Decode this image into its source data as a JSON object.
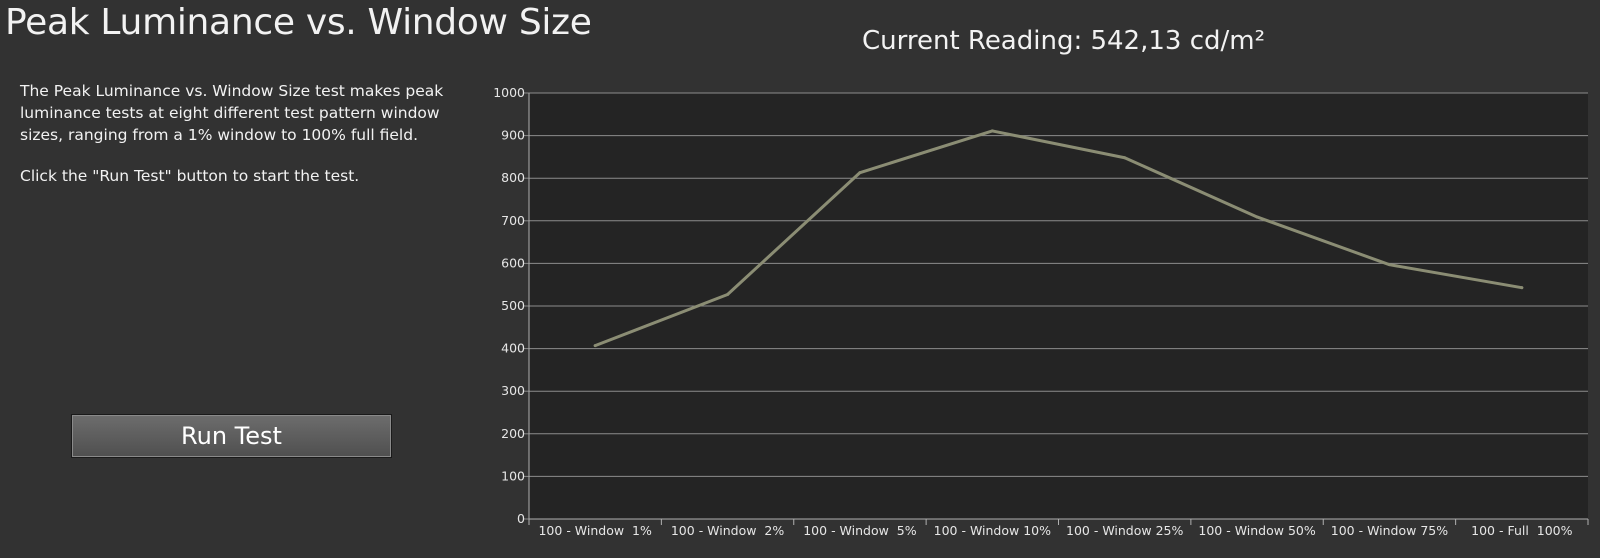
{
  "title": "Peak Luminance vs. Window Size",
  "reading": "Current Reading: 542,13 cd/m²",
  "description": "The Peak Luminance vs. Window Size test makes peak luminance tests at eight different test pattern window sizes, ranging from a 1% window to 100% full field.",
  "hint": "Click the \"Run Test\" button to start the test.",
  "run_button_label": "Run Test",
  "colors": {
    "background": "#323232",
    "plot_background": "#242424",
    "grid": "#8c8c8c",
    "line": "#8b8d74"
  },
  "chart_data": {
    "type": "line",
    "categories": [
      "100 - Window  1%",
      "100 - Window  2%",
      "100 - Window  5%",
      "100 - Window 10%",
      "100 - Window 25%",
      "100 - Window 50%",
      "100 - Window 75%",
      "100 - Full  100%"
    ],
    "values": [
      407,
      527,
      813,
      911,
      848,
      709,
      597,
      543
    ],
    "ylim": [
      0,
      1000
    ],
    "yticks": [
      "0",
      "100",
      "200",
      "300",
      "400",
      "500",
      "600",
      "700",
      "800",
      "900",
      "1000"
    ],
    "grid": true,
    "legend": false
  }
}
